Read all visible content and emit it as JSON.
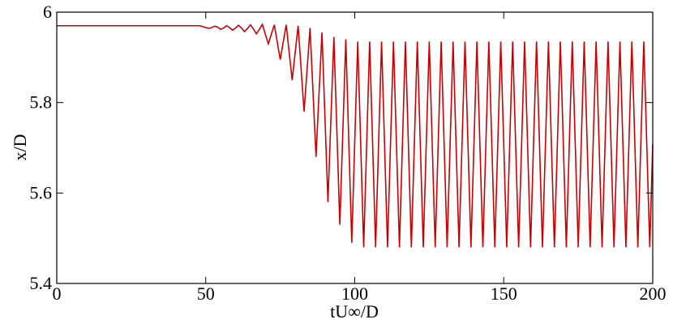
{
  "chart_data": {
    "type": "line",
    "xlabel": "tU∞/D",
    "ylabel": "x/D",
    "color": "#cc0000",
    "xlim": [
      0,
      200
    ],
    "xticks": [
      0,
      50,
      100,
      150,
      200
    ],
    "ylim": [
      5.4,
      6
    ],
    "yticks": [
      5.4,
      5.6,
      5.8,
      6
    ],
    "x": [
      0,
      1,
      2,
      3,
      4,
      5,
      6,
      7,
      8,
      9,
      10,
      11,
      12,
      13,
      14,
      15,
      16,
      17,
      18,
      19,
      20,
      21,
      22,
      23,
      24,
      25,
      26,
      27,
      28,
      29,
      30,
      31,
      32,
      33,
      34,
      35,
      36,
      37,
      38,
      39,
      40,
      41,
      42,
      43,
      44,
      45,
      46,
      47,
      48,
      49,
      50,
      51,
      52,
      53,
      54,
      55,
      56,
      57,
      58,
      59,
      60,
      61,
      62,
      63,
      64,
      65,
      66,
      67,
      68,
      69,
      70,
      71,
      72,
      73,
      74,
      75,
      76,
      77,
      78,
      79,
      80,
      81,
      82,
      83,
      84,
      85,
      86,
      87,
      88,
      89,
      90,
      91,
      92,
      93,
      94,
      95,
      96,
      97,
      98,
      99,
      100,
      101,
      102,
      103,
      104,
      105,
      106,
      107,
      108,
      109,
      110,
      111,
      112,
      113,
      114,
      115,
      116,
      117,
      118,
      119,
      120,
      121,
      122,
      123,
      124,
      125,
      126,
      127,
      128,
      129,
      130,
      131,
      132,
      133,
      134,
      135,
      136,
      137,
      138,
      139,
      140,
      141,
      142,
      143,
      144,
      145,
      146,
      147,
      148,
      149,
      150,
      151,
      152,
      153,
      154,
      155,
      156,
      157,
      158,
      159,
      160,
      161,
      162,
      163,
      164,
      165,
      166,
      167,
      168,
      169,
      170,
      171,
      172,
      173,
      174,
      175,
      176,
      177,
      178,
      179,
      180,
      181,
      182,
      183,
      184,
      185,
      186,
      187,
      188,
      189,
      190,
      191,
      192,
      193,
      194,
      195,
      196,
      197,
      198,
      199,
      200
    ],
    "values": [
      5.97,
      5.97,
      5.97,
      5.97,
      5.97,
      5.97,
      5.97,
      5.97,
      5.97,
      5.97,
      5.97,
      5.97,
      5.97,
      5.97,
      5.97,
      5.97,
      5.97,
      5.97,
      5.97,
      5.97,
      5.97,
      5.97,
      5.97,
      5.97,
      5.97,
      5.97,
      5.97,
      5.97,
      5.97,
      5.97,
      5.97,
      5.97,
      5.97,
      5.97,
      5.97,
      5.97,
      5.97,
      5.97,
      5.97,
      5.97,
      5.97,
      5.97,
      5.97,
      5.97,
      5.97,
      5.97,
      5.97,
      5.97,
      5.97,
      5.968,
      5.966,
      5.964,
      5.966,
      5.969,
      5.967,
      5.962,
      5.965,
      5.97,
      5.966,
      5.96,
      5.965,
      5.971,
      5.965,
      5.957,
      5.964,
      5.972,
      5.963,
      5.952,
      5.962,
      5.973,
      5.951,
      5.93,
      5.951,
      5.972,
      5.934,
      5.895,
      5.934,
      5.972,
      5.911,
      5.85,
      5.91,
      5.97,
      5.875,
      5.78,
      5.873,
      5.965,
      5.823,
      5.68,
      5.818,
      5.955,
      5.768,
      5.58,
      5.763,
      5.945,
      5.738,
      5.53,
      5.735,
      5.94,
      5.715,
      5.49,
      5.713,
      5.935,
      5.708,
      5.48,
      5.708,
      5.935,
      5.708,
      5.48,
      5.708,
      5.935,
      5.708,
      5.48,
      5.708,
      5.935,
      5.708,
      5.48,
      5.708,
      5.935,
      5.708,
      5.48,
      5.708,
      5.935,
      5.708,
      5.48,
      5.708,
      5.935,
      5.708,
      5.48,
      5.708,
      5.935,
      5.708,
      5.48,
      5.708,
      5.935,
      5.708,
      5.48,
      5.708,
      5.935,
      5.708,
      5.48,
      5.708,
      5.935,
      5.708,
      5.48,
      5.708,
      5.935,
      5.708,
      5.48,
      5.708,
      5.935,
      5.708,
      5.48,
      5.708,
      5.935,
      5.708,
      5.48,
      5.708,
      5.935,
      5.708,
      5.48,
      5.708,
      5.935,
      5.708,
      5.48,
      5.708,
      5.935,
      5.708,
      5.48,
      5.708,
      5.935,
      5.708,
      5.48,
      5.708,
      5.935,
      5.708,
      5.48,
      5.708,
      5.935,
      5.708,
      5.48,
      5.708,
      5.935,
      5.708,
      5.48,
      5.708,
      5.935,
      5.708,
      5.48,
      5.708,
      5.935,
      5.708,
      5.48,
      5.708,
      5.935,
      5.708,
      5.48,
      5.708,
      5.935,
      5.708,
      5.48,
      5.708
    ]
  }
}
